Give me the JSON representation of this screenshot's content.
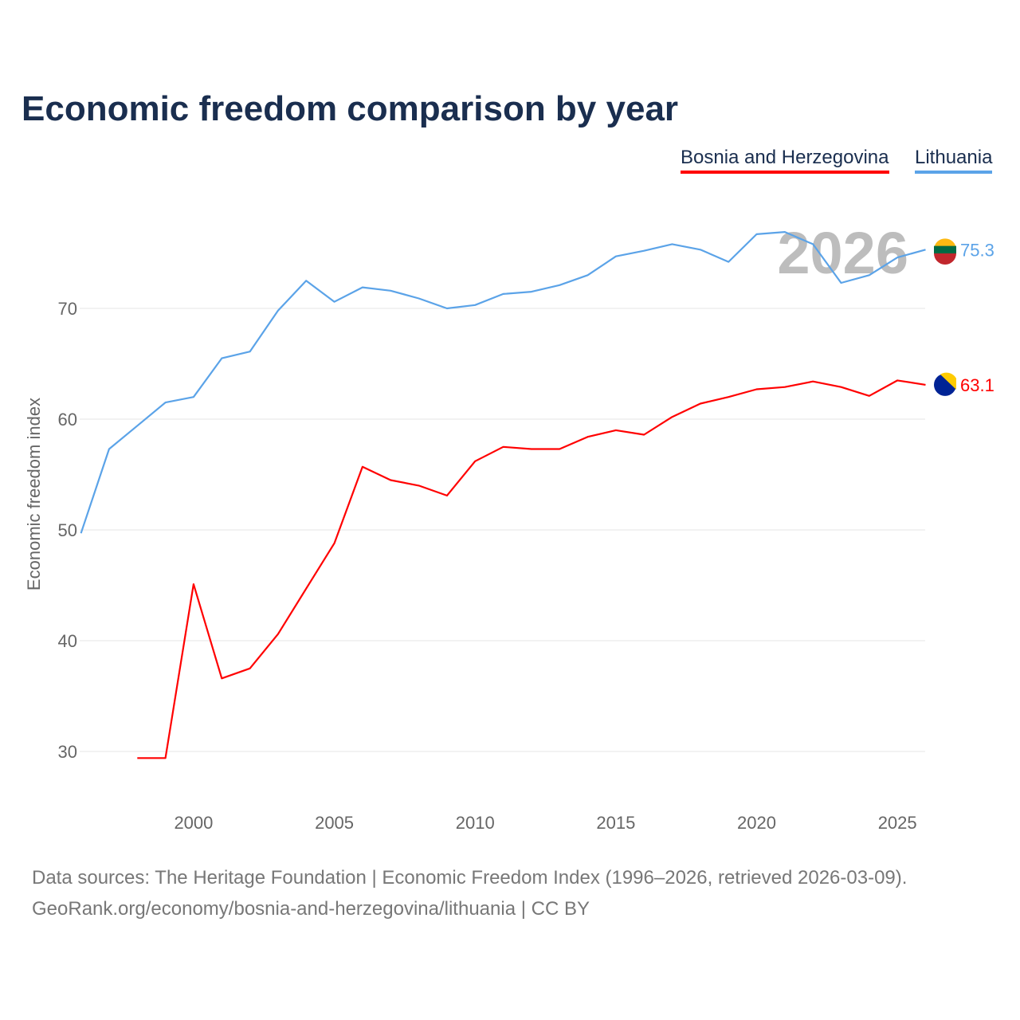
{
  "chart_data": {
    "type": "line",
    "title": "Economic freedom comparison by year",
    "xlabel": "",
    "ylabel": "Economic freedom index",
    "xlim": [
      1996,
      2026
    ],
    "ylim": [
      25,
      80
    ],
    "xticks": [
      2000,
      2005,
      2010,
      2015,
      2020,
      2025
    ],
    "yticks": [
      30,
      40,
      50,
      60,
      70
    ],
    "grid": true,
    "year_watermark": "2026",
    "legend_position": "top-right",
    "series": [
      {
        "name": "Bosnia and Herzegovina",
        "color": "#ff0000",
        "end_label": "63.1",
        "x": [
          1998,
          1999,
          2000,
          2001,
          2002,
          2003,
          2004,
          2005,
          2006,
          2007,
          2008,
          2009,
          2010,
          2011,
          2012,
          2013,
          2014,
          2015,
          2016,
          2017,
          2018,
          2019,
          2020,
          2021,
          2022,
          2023,
          2024,
          2025,
          2026
        ],
        "values": [
          29.4,
          29.4,
          45.1,
          36.6,
          37.5,
          40.6,
          44.7,
          48.8,
          55.7,
          54.5,
          54.0,
          53.1,
          56.2,
          57.5,
          57.3,
          57.3,
          58.4,
          59.0,
          58.6,
          60.2,
          61.4,
          62.0,
          62.7,
          62.9,
          63.4,
          62.9,
          62.1,
          63.5,
          63.1
        ]
      },
      {
        "name": "Lithuania",
        "color": "#5ba3e8",
        "end_label": "75.3",
        "x": [
          1996,
          1997,
          1998,
          1999,
          2000,
          2001,
          2002,
          2003,
          2004,
          2005,
          2006,
          2007,
          2008,
          2009,
          2010,
          2011,
          2012,
          2013,
          2014,
          2015,
          2016,
          2017,
          2018,
          2019,
          2020,
          2021,
          2022,
          2023,
          2024,
          2025,
          2026
        ],
        "values": [
          49.7,
          57.3,
          59.4,
          61.5,
          62.0,
          65.5,
          66.1,
          69.8,
          72.5,
          70.6,
          71.9,
          71.6,
          70.9,
          70.0,
          70.3,
          71.3,
          71.5,
          72.1,
          73.0,
          74.7,
          75.2,
          75.8,
          75.3,
          74.2,
          76.7,
          76.9,
          75.8,
          72.3,
          73.0,
          74.6,
          75.3
        ]
      }
    ]
  },
  "footer": {
    "line1": "Data sources: The Heritage Foundation | Economic Freedom Index (1996–2026, retrieved 2026-03-09).",
    "line2": "GeoRank.org/economy/bosnia-and-herzegovina/lithuania | CC BY"
  }
}
